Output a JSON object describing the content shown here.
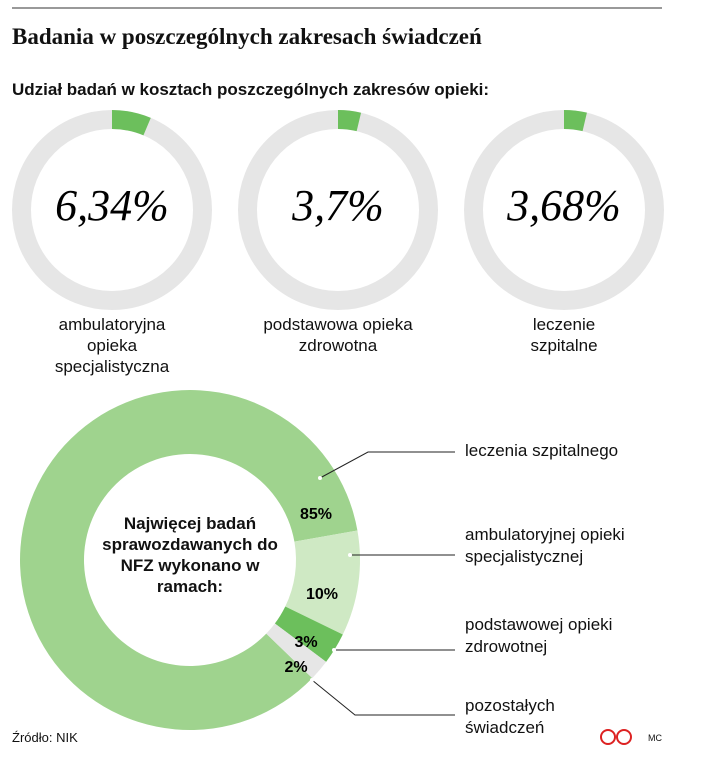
{
  "title": "Badania w poszczególnych zakresach świadczeń",
  "subtitle": "Udział badań w kosztach poszczególnych zakresów opieki:",
  "source": "Źródło: NIK",
  "credit": "MC",
  "chart_data": [
    {
      "type": "donut",
      "categories": [
        "ambulatoryjna opieka specjalistyczna"
      ],
      "values": [
        6.34
      ],
      "value_labels": [
        "6,34%"
      ],
      "color": "#6cbf5c"
    },
    {
      "type": "donut",
      "categories": [
        "podstawowa opieka zdrowotna"
      ],
      "values": [
        3.7
      ],
      "value_labels": [
        "3,7%"
      ],
      "color": "#6cbf5c"
    },
    {
      "type": "donut",
      "categories": [
        "leczenie szpitalne"
      ],
      "values": [
        3.68
      ],
      "value_labels": [
        "3,68%"
      ],
      "color": "#6cbf5c"
    },
    {
      "type": "pie",
      "title": "Najwięcej badań sprawozdawanych do NFZ wykonano w ramach:",
      "categories": [
        "leczenia szpitalnego",
        "ambulatoryjnej opieki specjalistycznej",
        "podstawowej opieki zdrowotnej",
        "pozostałych świadczeń"
      ],
      "values": [
        85,
        10,
        3,
        2
      ],
      "value_labels": [
        "85%",
        "10%",
        "3%",
        "2%"
      ],
      "colors": [
        "#9fd38e",
        "#cfe9c4",
        "#6cbf5c",
        "#e6e6e6"
      ]
    }
  ]
}
